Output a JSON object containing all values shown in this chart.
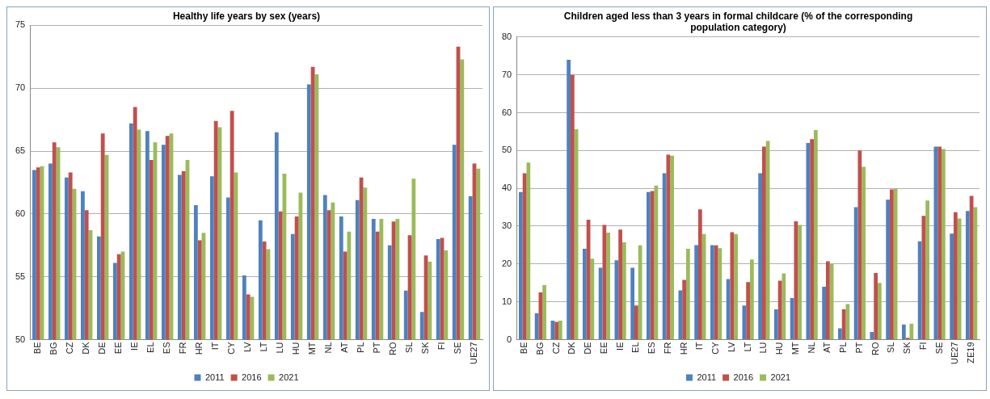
{
  "chart_data": [
    {
      "type": "bar",
      "title": "Healthy life years by sex (years)",
      "categories": [
        "BE",
        "BG",
        "CZ",
        "DK",
        "DE",
        "EE",
        "IE",
        "EL",
        "ES",
        "FR",
        "HR",
        "IT",
        "CY",
        "LV",
        "LT",
        "LU",
        "HU",
        "MT",
        "NL",
        "AT",
        "PL",
        "PT",
        "RO",
        "SL",
        "SK",
        "FI",
        "SE",
        "UE27"
      ],
      "series": [
        {
          "name": "2011",
          "color": "#4f81bd",
          "values": [
            63.5,
            64.0,
            62.9,
            61.8,
            58.2,
            56.1,
            67.2,
            66.6,
            65.5,
            63.1,
            60.7,
            63.0,
            61.3,
            55.1,
            59.5,
            66.5,
            58.4,
            70.3,
            61.5,
            59.8,
            61.1,
            59.6,
            57.5,
            53.9,
            52.2,
            58.0,
            65.5,
            61.4
          ]
        },
        {
          "name": "2016",
          "color": "#c0504d",
          "values": [
            63.7,
            65.7,
            63.3,
            60.3,
            66.4,
            56.8,
            68.5,
            64.3,
            66.2,
            63.4,
            57.9,
            67.4,
            68.2,
            53.6,
            57.8,
            60.2,
            59.8,
            71.7,
            60.3,
            57.0,
            62.9,
            58.6,
            59.4,
            58.3,
            56.7,
            58.1,
            73.3,
            64.0
          ]
        },
        {
          "name": "2021",
          "color": "#9bbb59",
          "values": [
            63.8,
            65.3,
            62.0,
            58.7,
            64.7,
            57.0,
            66.7,
            65.7,
            66.4,
            64.3,
            58.5,
            66.9,
            63.3,
            53.4,
            57.2,
            63.2,
            61.7,
            71.1,
            60.9,
            58.6,
            62.1,
            59.6,
            59.6,
            62.8,
            56.2,
            57.1,
            72.3,
            63.6
          ]
        }
      ],
      "ylim": [
        50,
        75
      ],
      "yticks": [
        50,
        55,
        60,
        65,
        70,
        75
      ],
      "grid": "y",
      "legend": "bottom"
    },
    {
      "type": "bar",
      "title": "Children aged less than 3 years in formal childcare (% of the corresponding population category)",
      "categories": [
        "BE",
        "BG",
        "CZ",
        "DK",
        "DE",
        "EE",
        "IE",
        "EL",
        "ES",
        "FR",
        "HR",
        "IT",
        "CY",
        "LV",
        "LT",
        "LU",
        "HU",
        "MT",
        "NL",
        "AT",
        "PL",
        "PT",
        "RO",
        "SL",
        "SK",
        "FI",
        "SE",
        "UE27",
        "ZE19"
      ],
      "series": [
        {
          "name": "2011",
          "color": "#4f81bd",
          "values": [
            39,
            7,
            5,
            74,
            24,
            19,
            21,
            19,
            39,
            44,
            13,
            25,
            25,
            16,
            9,
            44,
            8,
            11,
            52,
            14,
            3,
            35,
            2,
            37,
            4,
            26,
            51,
            28,
            34
          ]
        },
        {
          "name": "2016",
          "color": "#c0504d",
          "values": [
            44,
            12.5,
            4.7,
            70,
            31.7,
            30.3,
            29.1,
            9,
            39.3,
            48.9,
            15.8,
            34.4,
            24.9,
            28.4,
            15.2,
            51,
            15.6,
            31.3,
            53,
            20.7,
            8,
            50,
            17.6,
            39.7,
            0.5,
            32.7,
            51,
            33.7,
            38
          ]
        },
        {
          "name": "2021",
          "color": "#9bbb59",
          "values": [
            46.8,
            14.4,
            5,
            55.6,
            21.4,
            28.3,
            25.7,
            24.9,
            40.7,
            48.6,
            24,
            27.9,
            24.2,
            27.9,
            21.2,
            52.5,
            17.5,
            30.3,
            55.4,
            20,
            9.4,
            45.7,
            15,
            40,
            4.2,
            36.8,
            50.4,
            32,
            35
          ]
        }
      ],
      "ylim": [
        0,
        80
      ],
      "yticks": [
        0,
        10,
        20,
        30,
        40,
        50,
        60,
        70,
        80
      ],
      "grid": "y",
      "legend": "bottom"
    }
  ]
}
